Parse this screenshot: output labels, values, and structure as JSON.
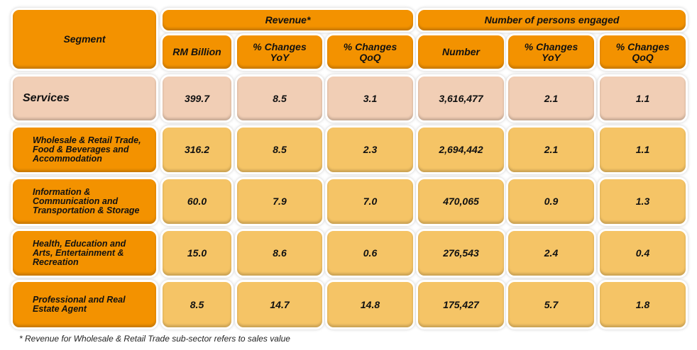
{
  "header": {
    "segment": "Segment",
    "revenue": "Revenue*",
    "persons": "Number of persons engaged",
    "columns": [
      "RM Billion",
      "% Changes YoY",
      "% Changes QoQ",
      "Number",
      "% Changes YoY",
      "% Changes QoQ"
    ]
  },
  "rows": [
    {
      "segment": "Services",
      "values": [
        "399.7",
        "8.5",
        "3.1",
        "3,616,477",
        "2.1",
        "1.1"
      ]
    },
    {
      "segment": "Wholesale & Retail Trade, Food & Beverages and Accommodation",
      "values": [
        "316.2",
        "8.5",
        "2.3",
        "2,694,442",
        "2.1",
        "1.1"
      ]
    },
    {
      "segment": "Information & Communication and Transportation & Storage",
      "values": [
        "60.0",
        "7.9",
        "7.0",
        "470,065",
        "0.9",
        "1.3"
      ]
    },
    {
      "segment": "Health, Education and Arts, Entertainment & Recreation",
      "values": [
        "15.0",
        "8.6",
        "0.6",
        "276,543",
        "2.4",
        "0.4"
      ]
    },
    {
      "segment": "Professional and Real Estate Agent",
      "values": [
        "8.5",
        "14.7",
        "14.8",
        "175,427",
        "5.7",
        "1.8"
      ]
    }
  ],
  "footnote": "* Revenue for Wholesale & Retail Trade sub-sector refers to sales value",
  "colors": {
    "header": "#f39200",
    "services_row": "#f1ceb5",
    "data_cells": "#f5c466"
  }
}
